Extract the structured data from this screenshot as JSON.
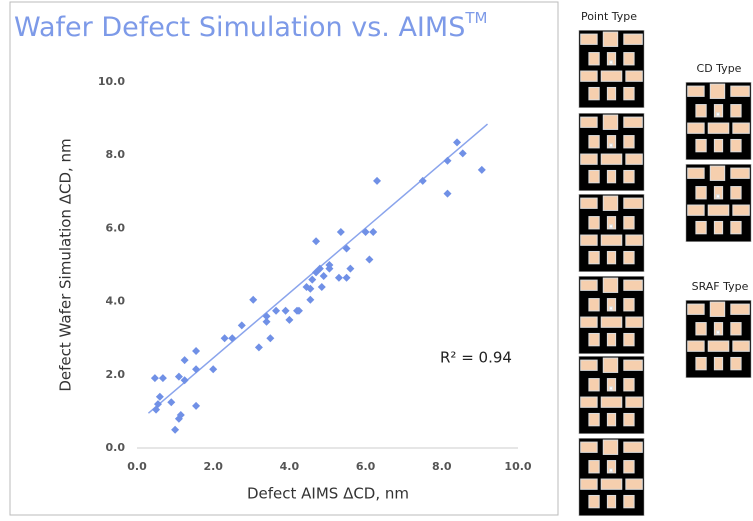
{
  "chart_data": {
    "type": "scatter",
    "title": "Wafer Defect Simulation vs. AIMS",
    "title_superscript": "TM",
    "x_label": "Defect AIMS ΔCD, nm",
    "y_label": "Defect Wafer Simulation ΔCD, nm",
    "annotation": "R² = 0.94",
    "color": "#7090e6",
    "x": [
      0.47,
      0.68,
      0.6,
      0.5,
      0.55,
      0.9,
      1.0,
      1.1,
      1.15,
      1.1,
      1.25,
      1.25,
      1.55,
      1.55,
      1.55,
      2.0,
      2.3,
      2.5,
      2.75,
      3.05,
      3.2,
      3.4,
      3.4,
      3.5,
      3.65,
      3.9,
      4.0,
      4.2,
      4.25,
      4.45,
      4.55,
      4.55,
      4.6,
      4.7,
      4.7,
      4.8,
      4.85,
      4.9,
      5.05,
      5.05,
      5.3,
      5.35,
      5.5,
      5.5,
      5.6,
      6.0,
      6.1,
      6.2,
      6.3,
      7.5,
      8.15,
      8.15,
      8.4,
      8.55,
      9.05
    ],
    "values": [
      1.91,
      1.91,
      1.4,
      1.05,
      1.2,
      1.25,
      0.5,
      0.8,
      0.9,
      1.95,
      1.85,
      2.4,
      2.65,
      1.15,
      2.15,
      2.15,
      3.0,
      3.0,
      3.35,
      4.05,
      2.75,
      3.45,
      3.6,
      3.0,
      3.75,
      3.75,
      3.5,
      3.75,
      3.75,
      4.4,
      4.05,
      4.35,
      4.6,
      4.8,
      5.65,
      4.9,
      4.4,
      4.7,
      4.9,
      5.0,
      4.65,
      5.9,
      4.65,
      5.45,
      4.9,
      5.9,
      5.15,
      5.9,
      7.3,
      7.3,
      6.95,
      7.85,
      8.35,
      8.05,
      7.6
    ],
    "trendline": {
      "x": [
        0.3,
        9.2
      ],
      "y": [
        0.95,
        8.85
      ],
      "color": "#8aa4ec"
    },
    "xlim": [
      0,
      10
    ],
    "ylim": [
      0,
      10
    ],
    "xticks": [
      {
        "value": 0,
        "label": "0.0"
      },
      {
        "value": 2,
        "label": "2.0"
      },
      {
        "value": 4,
        "label": "4.0"
      },
      {
        "value": 6,
        "label": "6.0"
      },
      {
        "value": 8,
        "label": "8.0"
      },
      {
        "value": 10,
        "label": "10.0"
      }
    ],
    "yticks": [
      {
        "value": 0,
        "label": "0.0"
      },
      {
        "value": 2,
        "label": "2.0"
      },
      {
        "value": 4,
        "label": "4.0"
      },
      {
        "value": 6,
        "label": "6.0"
      },
      {
        "value": 8,
        "label": "8.0"
      },
      {
        "value": 10,
        "label": "10.0"
      }
    ],
    "grid": false
  },
  "thumbnail_groups": [
    {
      "label": "Point Type"
    },
    {
      "label": "CD Type"
    },
    {
      "label": "SRAF Type"
    }
  ]
}
